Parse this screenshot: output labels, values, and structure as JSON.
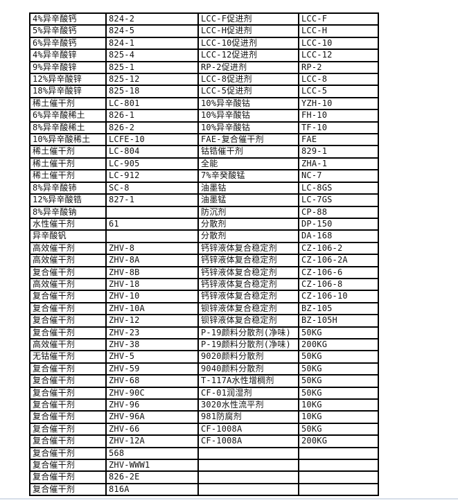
{
  "page": {
    "background": "#ffffff"
  },
  "colors": {
    "table_border": "#000000",
    "text": "#111111",
    "bottom_strip": "#d6dee9"
  },
  "table": {
    "rows": [
      [
        "4%异辛酸钙",
        "824-2",
        "LCC-F促进剂",
        "LCC-F"
      ],
      [
        "5%异辛酸钙",
        "824-5",
        "LCC-H促进剂",
        "LCC-H"
      ],
      [
        "6%异辛酸钙",
        "824-1",
        "LCC-10促进剂",
        "LCC-10"
      ],
      [
        "4%异辛酸锌",
        "825-4",
        "LCC-12促进剂",
        "LCC-12"
      ],
      [
        "9%异辛酸锌",
        "825-1",
        "RP-2促进剂",
        "RP-2"
      ],
      [
        "12%异辛酸锌",
        "825-12",
        "LCC-8促进剂",
        "LCC-8"
      ],
      [
        "18%异辛酸锌",
        "825-18",
        "LCC-5促进剂",
        "LCC-5"
      ],
      [
        "稀土催干剂",
        "LC-801",
        "10%异辛酸钴",
        "YZH-10"
      ],
      [
        "6%异辛酸稀土",
        "826-1",
        "10%异辛酸钴",
        "FH-10"
      ],
      [
        "8%异辛酸稀土",
        "826-2",
        "10%异辛酸钴",
        "TF-10"
      ],
      [
        "10%异辛酸稀土",
        "LCFE-10",
        "FAE-复合催干剂",
        "FAE"
      ],
      [
        "稀土催干剂",
        "LC-804",
        "钴锆催干剂",
        "829-1"
      ],
      [
        "稀土催干剂",
        "LC-905",
        "全能",
        "ZHA-1"
      ],
      [
        "稀土催干剂",
        "LC-912",
        "7%辛癸酸锰",
        "NC-7"
      ],
      [
        "8%异辛酸铈",
        "SC-8",
        "油墨钴",
        "LC-8GS"
      ],
      [
        "12%异辛酸锆",
        "827-1",
        "油墨锰",
        "LC-7GS"
      ],
      [
        "8%异辛酸钠",
        "",
        "防沉剂",
        "CP-88"
      ],
      [
        "水性催干剂",
        "61",
        "分散剂",
        "DP-150"
      ],
      [
        "异辛酸钒",
        "",
        "分散剂",
        "DA-168"
      ],
      [
        "高效催干剂",
        "ZHV-8",
        "钙锌液体复合稳定剂",
        "CZ-106-2"
      ],
      [
        "高效催干剂",
        "ZHV-8A",
        "钙锌液体复合稳定剂",
        "CZ-106-2A"
      ],
      [
        "复合催干剂",
        "ZHV-8B",
        "钙锌液体复合稳定剂",
        "CZ-106-6"
      ],
      [
        "高效催干剂",
        "ZHV-18",
        "钙锌液体复合稳定剂",
        "CZ-106-8"
      ],
      [
        "复合催干剂",
        "ZHV-10",
        "钙锌液体复合稳定剂",
        "CZ-106-10"
      ],
      [
        "复合催干剂",
        "ZHV-10A",
        "钡锌液体复合稳定剂",
        "BZ-105"
      ],
      [
        "复合催干剂",
        "ZHV-12",
        "钡锌液体复合稳定剂",
        "BZ-105H"
      ],
      [
        "复合催干剂",
        "ZHV-23",
        "P-19颜料分散剂(净味)",
        "50KG"
      ],
      [
        "高效催干剂",
        "ZHV-38",
        "P-19颜料分散剂(净味)",
        "200KG"
      ],
      [
        "无钴催干剂",
        "ZHV-5",
        "9020颜料分散剂",
        "50KG"
      ],
      [
        "复合催干剂",
        "ZHV-59",
        "9040颜料分散剂",
        "50KG"
      ],
      [
        "复合催干剂",
        "ZHV-68",
        "T-117A水性增稠剂",
        "50KG"
      ],
      [
        "复合催干剂",
        "ZHV-90C",
        "CF-01润湿剂",
        "50KG"
      ],
      [
        "复合催干剂",
        "ZHV-96",
        "3020水性流平剂",
        "10KG"
      ],
      [
        "复合催干剂",
        "ZHV-96A",
        "981防腐剂",
        "10KG"
      ],
      [
        "复合催干剂",
        "ZHV-66",
        "CF-1008A",
        "50KG"
      ],
      [
        "复合催干剂",
        "ZHV-12A",
        "CF-1008A",
        "200KG"
      ],
      [
        "复合催干剂",
        "568",
        "",
        ""
      ],
      [
        "复合催干剂",
        "ZHV-WWW1",
        "",
        ""
      ],
      [
        "复合催干剂",
        "826-2E",
        "",
        ""
      ],
      [
        "复合催干剂",
        "816A",
        "",
        ""
      ]
    ]
  }
}
